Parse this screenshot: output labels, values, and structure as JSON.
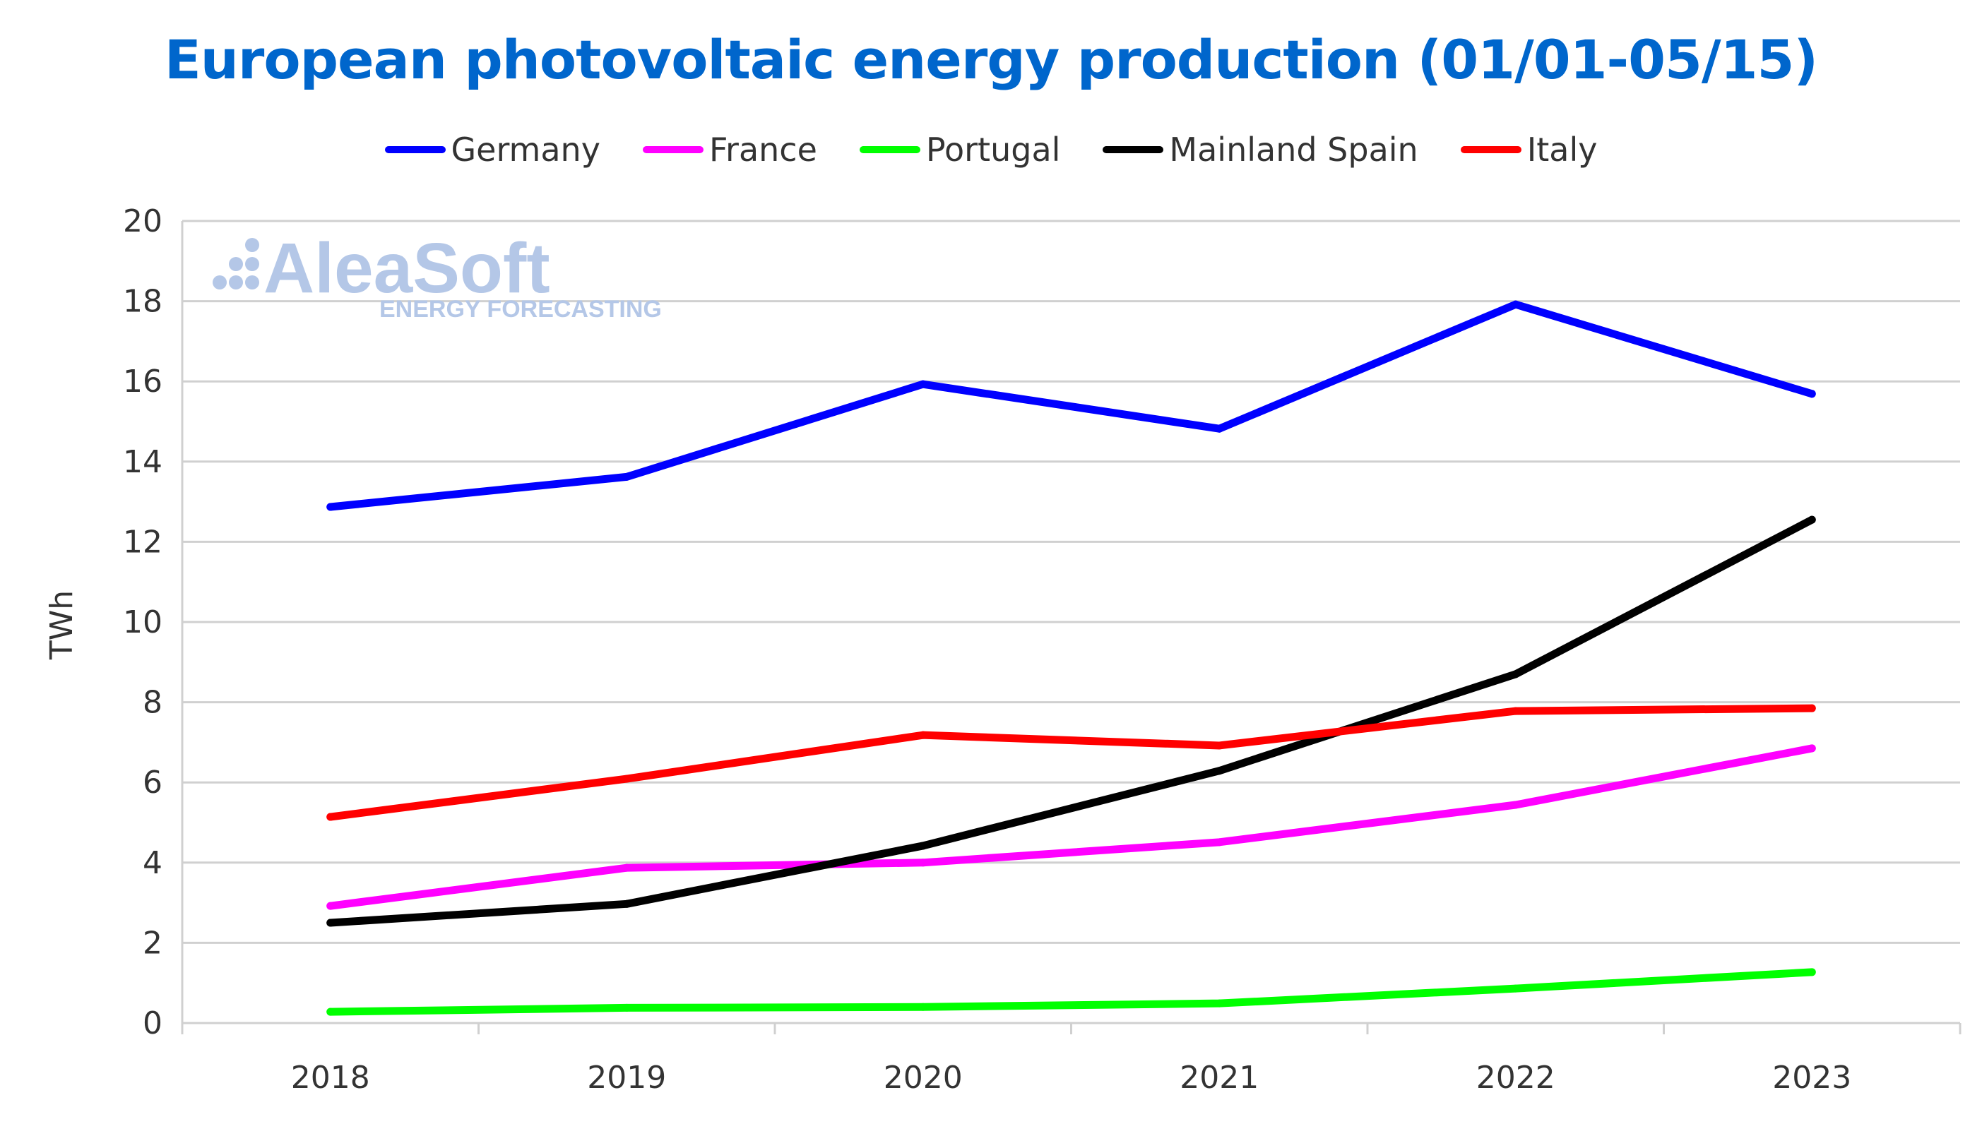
{
  "chart_data": {
    "type": "line",
    "title": "European photovoltaic energy production (01/01-05/15)",
    "xlabel": "",
    "ylabel": "TWh",
    "categories": [
      "2018",
      "2019",
      "2020",
      "2021",
      "2022",
      "2023"
    ],
    "ylim": [
      0,
      20
    ],
    "yticks": [
      0,
      2,
      4,
      6,
      8,
      10,
      12,
      14,
      16,
      18,
      20
    ],
    "grid": true,
    "legend_position": "top",
    "series": [
      {
        "name": "Germany",
        "color": "#0000ff",
        "values": [
          12.87,
          13.62,
          15.93,
          14.82,
          17.92,
          15.69
        ]
      },
      {
        "name": "France",
        "color": "#ff00ff",
        "values": [
          2.92,
          3.87,
          4.0,
          4.51,
          5.44,
          6.85
        ]
      },
      {
        "name": "Portugal",
        "color": "#00ff00",
        "values": [
          0.28,
          0.38,
          0.4,
          0.49,
          0.86,
          1.27
        ]
      },
      {
        "name": "Mainland Spain",
        "color": "#000000",
        "values": [
          2.5,
          2.97,
          4.42,
          6.29,
          8.7,
          12.55
        ]
      },
      {
        "name": "Italy",
        "color": "#ff0000",
        "values": [
          5.14,
          6.09,
          7.18,
          6.92,
          7.78,
          7.85
        ]
      }
    ]
  },
  "watermark": {
    "brand": "AleaSoft",
    "tagline": "ENERGY FORECASTING"
  }
}
